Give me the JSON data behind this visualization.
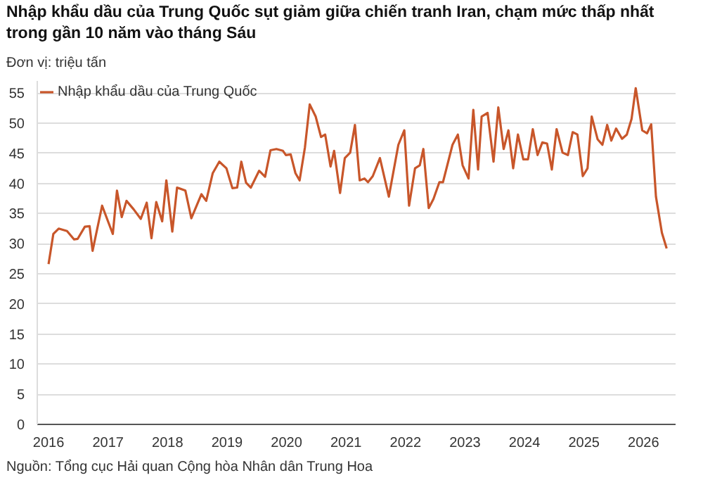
{
  "chart_data": {
    "type": "line",
    "title": "Nhập khẩu dầu của Trung Quốc sụt giảm giữa chiến tranh Iran, chạm mức thấp nhất trong gần 10 năm vào tháng Sáu",
    "subtitle": "Đơn vị: triệu tấn",
    "annotations": [
      "Nguồn: Tổng cục Hải quan Cộng hòa Nhân dân Trung Hoa"
    ],
    "x": [
      2016.0,
      2016.08,
      2016.17,
      2016.31,
      2016.43,
      2016.49,
      2016.61,
      2016.69,
      2016.74,
      2016.9,
      2017.08,
      2017.15,
      2017.23,
      2017.31,
      2017.43,
      2017.55,
      2017.65,
      2017.73,
      2017.81,
      2017.91,
      2017.98,
      2018.08,
      2018.16,
      2018.3,
      2018.4,
      2018.57,
      2018.65,
      2018.76,
      2018.87,
      2018.99,
      2019.09,
      2019.17,
      2019.24,
      2019.32,
      2019.4,
      2019.54,
      2019.64,
      2019.73,
      2019.83,
      2019.94,
      2019.99,
      2020.07,
      2020.15,
      2020.22,
      2020.31,
      2020.39,
      2020.49,
      2020.58,
      2020.65,
      2020.74,
      2020.8,
      2020.9,
      2020.98,
      2021.07,
      2021.15,
      2021.23,
      2021.31,
      2021.37,
      2021.45,
      2021.57,
      2021.72,
      2021.88,
      2021.98,
      2022.06,
      2022.16,
      2022.24,
      2022.3,
      2022.39,
      2022.47,
      2022.57,
      2022.63,
      2022.79,
      2022.88,
      2022.96,
      2023.06,
      2023.14,
      2023.22,
      2023.28,
      2023.38,
      2023.48,
      2023.56,
      2023.65,
      2023.73,
      2023.81,
      2023.89,
      2023.98,
      2024.06,
      2024.14,
      2024.22,
      2024.3,
      2024.38,
      2024.46,
      2024.54,
      2024.64,
      2024.73,
      2024.81,
      2024.89,
      2024.98,
      2025.06,
      2025.13,
      2025.23,
      2025.31,
      2025.39,
      2025.46,
      2025.54,
      2025.64,
      2025.72,
      2025.8,
      2025.87,
      2025.98,
      2026.06,
      2026.13,
      2026.21,
      2026.31,
      2026.39
    ],
    "series": [
      {
        "name": "Nhập khẩu dầu của Trung Quốc",
        "color": "#c8562a",
        "values": [
          26.6,
          31.6,
          32.5,
          32.1,
          30.7,
          30.8,
          32.8,
          32.9,
          28.8,
          36.3,
          31.6,
          38.8,
          34.4,
          37.1,
          35.7,
          34.1,
          36.8,
          30.9,
          36.9,
          33.7,
          40.5,
          32.0,
          39.3,
          38.8,
          34.2,
          38.2,
          37.1,
          41.7,
          43.6,
          42.5,
          39.2,
          39.3,
          43.6,
          40.1,
          39.3,
          42.1,
          41.1,
          45.5,
          45.7,
          45.4,
          44.7,
          44.8,
          41.7,
          40.5,
          46.0,
          53.1,
          51.1,
          47.7,
          48.1,
          42.8,
          45.4,
          38.4,
          44.2,
          45.1,
          49.7,
          40.5,
          40.8,
          40.2,
          41.2,
          44.2,
          37.8,
          46.4,
          48.8,
          36.3,
          42.5,
          43.0,
          45.7,
          35.9,
          37.4,
          40.2,
          40.2,
          46.4,
          48.1,
          43.0,
          40.8,
          52.2,
          42.3,
          51.1,
          51.7,
          43.6,
          52.6,
          45.7,
          48.8,
          42.5,
          48.1,
          44.0,
          44.0,
          49.0,
          44.7,
          46.8,
          46.6,
          42.3,
          49.0,
          45.1,
          44.7,
          48.5,
          48.1,
          41.2,
          42.5,
          51.1,
          47.3,
          46.4,
          49.7,
          47.1,
          49.1,
          47.4,
          48.1,
          50.7,
          55.8,
          48.8,
          48.3,
          49.8,
          37.8,
          31.8,
          29.2
        ]
      }
    ],
    "xlim": [
      2015.81,
      2026.54
    ],
    "xticks": [
      2016,
      2017,
      2018,
      2019,
      2020,
      2021,
      2022,
      2023,
      2024,
      2025,
      2026
    ],
    "ylim": [
      0,
      57
    ],
    "yticks": [
      0,
      5,
      10,
      15,
      20,
      25,
      30,
      35,
      40,
      45,
      50,
      55
    ],
    "grid": "y",
    "legend": "top left",
    "line_style": "solid",
    "marker": "none"
  }
}
